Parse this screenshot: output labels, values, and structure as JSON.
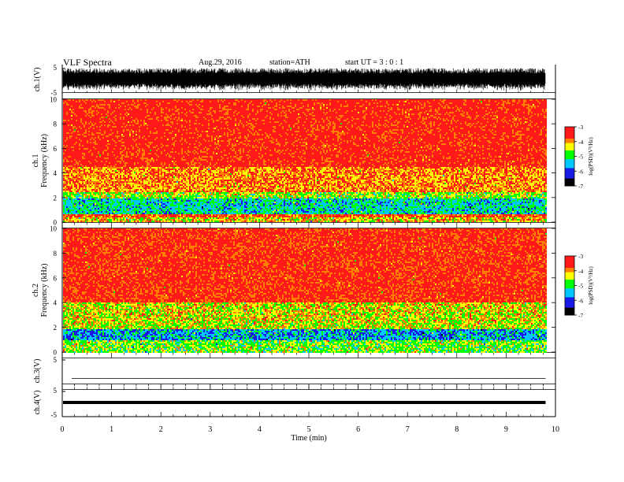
{
  "header": {
    "title": "VLF  Spectra",
    "date": "Aug.29, 2016",
    "station": "station=ATH",
    "start": "start  UT  =   3  : 0  : 1"
  },
  "colors": {
    "palette": [
      "#000000",
      "#1a1ae6",
      "#00c8ff",
      "#00ff00",
      "#ffff00",
      "#ff8000",
      "#ff1a1a",
      "#ffffff"
    ]
  },
  "chart_data": [
    {
      "type": "line",
      "panel": "ch1-waveform",
      "ylabel": "ch.1(V)",
      "ylim": [
        -5,
        5
      ],
      "yticks": [
        "5",
        "-5"
      ],
      "xlim": [
        0,
        10
      ],
      "description_values": {
        "amplitude_V": 4.5
      }
    },
    {
      "type": "heatmap",
      "panel": "ch1-spectrogram",
      "ylabel_channel": "ch.1",
      "ylabel": "Frequency  (kHz)",
      "ylim": [
        0,
        10
      ],
      "yticks": [
        "0",
        "2",
        "4",
        "6",
        "8",
        "10"
      ],
      "xlim": [
        0,
        10
      ],
      "data_end_min": 9.8,
      "bands": [
        {
          "f_lo": 0.0,
          "f_hi": 0.35,
          "level": -4.2
        },
        {
          "f_lo": 0.35,
          "f_hi": 0.6,
          "level": -3.6
        },
        {
          "f_lo": 0.6,
          "f_hi": 1.9,
          "level": -5.3
        },
        {
          "f_lo": 1.9,
          "f_hi": 2.5,
          "level": -4.6
        },
        {
          "f_lo": 2.5,
          "f_hi": 4.5,
          "level": -3.9
        },
        {
          "f_lo": 4.5,
          "f_hi": 10.0,
          "level": -3.3
        }
      ],
      "colorbar": {
        "label": "log(PSD)(V²/Hz)",
        "ticks": [
          "-3",
          "-4",
          "-5",
          "-6",
          "-7"
        ],
        "range": [
          -7,
          -3
        ]
      }
    },
    {
      "type": "heatmap",
      "panel": "ch2-spectrogram",
      "ylabel_channel": "ch.2",
      "ylabel": "Frequency  (kHz)",
      "ylim": [
        0,
        10
      ],
      "yticks": [
        "0",
        "2",
        "4",
        "6",
        "8",
        "10"
      ],
      "xlim": [
        0,
        10
      ],
      "data_end_min": 9.8,
      "bands": [
        {
          "f_lo": 0.0,
          "f_hi": 0.9,
          "level": -4.7
        },
        {
          "f_lo": 0.9,
          "f_hi": 1.9,
          "level": -5.6
        },
        {
          "f_lo": 1.9,
          "f_hi": 2.5,
          "level": -4.4
        },
        {
          "f_lo": 2.5,
          "f_hi": 4.0,
          "level": -4.3
        },
        {
          "f_lo": 4.0,
          "f_hi": 10.0,
          "level": -3.4
        }
      ],
      "colorbar": {
        "label": "log(PSD)(V²/Hz)",
        "ticks": [
          "-3",
          "-4",
          "-5",
          "-6",
          "-7"
        ],
        "range": [
          -7,
          -3
        ]
      }
    },
    {
      "type": "line",
      "panel": "ch3-waveform",
      "ylabel": "ch.3(V)",
      "ylim": [
        -5,
        5
      ],
      "yticks": [
        "5"
      ],
      "xlim": [
        0,
        10
      ],
      "description_values": {
        "level_V": -3
      }
    },
    {
      "type": "line",
      "panel": "ch4-waveform",
      "ylabel": "ch.4(V)",
      "ylim": [
        -5,
        5
      ],
      "yticks": [
        "5",
        "-5"
      ],
      "xlim": [
        0,
        10
      ],
      "description_values": {
        "level_V": 0
      }
    }
  ],
  "xaxis": {
    "label": "Time  (min)",
    "ticks": [
      "0",
      "1",
      "2",
      "3",
      "4",
      "5",
      "6",
      "7",
      "8",
      "9",
      "10"
    ]
  }
}
